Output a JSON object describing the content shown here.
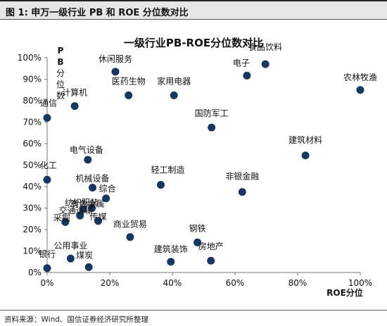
{
  "figure": {
    "title": "图 1: 申万一级行业 PB 和 ROE 分位数对比",
    "source": "资料来源：Wind、国信证券经济研究所整理"
  },
  "colors": {
    "marker": "#17375e",
    "header_bg": "#e6e6e6"
  },
  "chart_data": {
    "type": "scatter",
    "title": "一级行业PB-ROE分位数对比",
    "xlabel": "ROE分位",
    "ylabel": "PB分位数",
    "xlim": [
      0,
      1
    ],
    "ylim": [
      0,
      1
    ],
    "x_ticks": [
      "0%",
      "20%",
      "40%",
      "60%",
      "80%",
      "100%"
    ],
    "y_ticks": [
      "0%",
      "10%",
      "20%",
      "30%",
      "40%",
      "50%",
      "60%",
      "70%",
      "80%",
      "90%",
      "100%"
    ],
    "grid": false,
    "legend": "none",
    "points": [
      {
        "label": "休闲服务",
        "x": 0.218,
        "y": 0.935
      },
      {
        "label": "食品饮料",
        "x": 0.697,
        "y": 0.97
      },
      {
        "label": "电子",
        "x": 0.638,
        "y": 0.917
      },
      {
        "label": "农林牧渔",
        "x": 1.0,
        "y": 0.85
      },
      {
        "label": "医药生物",
        "x": 0.26,
        "y": 0.825
      },
      {
        "label": "家用电器",
        "x": 0.405,
        "y": 0.825
      },
      {
        "label": "计算机",
        "x": 0.088,
        "y": 0.775
      },
      {
        "label": "通信",
        "x": 0.0,
        "y": 0.72
      },
      {
        "label": "国防军工",
        "x": 0.525,
        "y": 0.675
      },
      {
        "label": "建筑材料",
        "x": 0.825,
        "y": 0.545
      },
      {
        "label": "电气设备",
        "x": 0.13,
        "y": 0.525
      },
      {
        "label": "化工",
        "x": 0.0,
        "y": 0.432
      },
      {
        "label": "轻工制造",
        "x": 0.363,
        "y": 0.408
      },
      {
        "label": "机械设备",
        "x": 0.145,
        "y": 0.395
      },
      {
        "label": "非银金融",
        "x": 0.623,
        "y": 0.375
      },
      {
        "label": "综合",
        "x": 0.188,
        "y": 0.345
      },
      {
        "label": "有色金属",
        "x": 0.143,
        "y": 0.3
      },
      {
        "label": "纺织服装",
        "x": 0.115,
        "y": 0.295
      },
      {
        "label": "交通运输",
        "x": 0.105,
        "y": 0.265
      },
      {
        "label": "传媒",
        "x": 0.163,
        "y": 0.24
      },
      {
        "label": "采掘",
        "x": 0.058,
        "y": 0.235
      },
      {
        "label": "商业贸易",
        "x": 0.265,
        "y": 0.165
      },
      {
        "label": "钢铁",
        "x": 0.48,
        "y": 0.14
      },
      {
        "label": "公用事业",
        "x": 0.075,
        "y": 0.065
      },
      {
        "label": "建筑装饰",
        "x": 0.395,
        "y": 0.05
      },
      {
        "label": "房地产",
        "x": 0.523,
        "y": 0.055
      },
      {
        "label": "银行",
        "x": 0.0,
        "y": 0.02
      },
      {
        "label": "煤炭",
        "x": 0.133,
        "y": 0.025
      }
    ]
  }
}
